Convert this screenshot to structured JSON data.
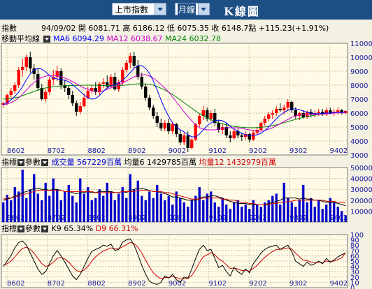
{
  "header": {
    "market_select": "上市指數",
    "period_select": "月線",
    "title": "K線圖"
  },
  "price_panel": {
    "label": "指數",
    "date": "94/09/02",
    "open_label": "開",
    "open": "6081.71",
    "high_label": "高",
    "high": "6186.12",
    "low_label": "低",
    "low": "6075.35",
    "close_label": "收",
    "close": "6148.7點",
    "change": "+115.23(+1.91%)",
    "ma_label": "移動平均線",
    "ma6": "MA6 6094.29",
    "ma12": "MA12 6038.67",
    "ma24": "MA24 6032.78"
  },
  "volume_panel": {
    "label": "指標",
    "param_label": "參數",
    "volume": "成交量 567229百萬",
    "avg6": "均量6 1429785百萬",
    "avg12": "均量12 1432979百萬"
  },
  "kd_panel": {
    "label": "指標",
    "param_label": "參數",
    "k9": "K9 65.34%",
    "d9": "D9 66.31%"
  },
  "colors": {
    "up": "#ff0000",
    "down": "#000000",
    "ma6": "#0000ff",
    "ma12": "#cc00cc",
    "ma24": "#008000",
    "volume": "#0000cc",
    "k": "#000000",
    "d": "#cc0000",
    "axis_text": "#1a1aa0",
    "plot_bg": "#fffbe6"
  },
  "chart_data": [
    {
      "type": "candlestick",
      "x_ticks": [
        "8602",
        "8702",
        "8802",
        "8902",
        "9002",
        "9102",
        "9202",
        "9302",
        "9402"
      ],
      "ylim": [
        3000,
        11000
      ],
      "y_ticks": [
        "3000",
        "4000",
        "5000",
        "6000",
        "7000",
        "8000",
        "9000",
        "10000",
        "11000"
      ],
      "candles": [
        [
          6600,
          6800,
          6400,
          6700
        ],
        [
          6700,
          7400,
          6600,
          7300
        ],
        [
          7300,
          7800,
          7100,
          7600
        ],
        [
          7600,
          8200,
          7400,
          8000
        ],
        [
          8000,
          9300,
          7800,
          9100
        ],
        [
          9100,
          9900,
          8600,
          9300
        ],
        [
          9300,
          10200,
          9000,
          10000
        ],
        [
          10000,
          10400,
          8900,
          9200
        ],
        [
          9200,
          9500,
          8400,
          8800
        ],
        [
          8800,
          9200,
          7600,
          7800
        ],
        [
          7800,
          8100,
          6900,
          7000
        ],
        [
          7000,
          7700,
          6800,
          7500
        ],
        [
          7500,
          8600,
          7300,
          8400
        ],
        [
          8400,
          9100,
          8000,
          8600
        ],
        [
          8600,
          9400,
          8300,
          9000
        ],
        [
          9000,
          9200,
          7700,
          8000
        ],
        [
          8000,
          8400,
          7500,
          7800
        ],
        [
          7800,
          8000,
          7000,
          7300
        ],
        [
          7300,
          7600,
          6500,
          6700
        ],
        [
          6700,
          6900,
          5800,
          6100
        ],
        [
          6100,
          6800,
          5900,
          6500
        ],
        [
          6500,
          7400,
          6400,
          7100
        ],
        [
          7100,
          7900,
          7000,
          7600
        ],
        [
          7600,
          8000,
          7400,
          7800
        ],
        [
          7800,
          8200,
          7300,
          7500
        ],
        [
          7500,
          8200,
          7300,
          8100
        ],
        [
          8100,
          8500,
          7800,
          8200
        ],
        [
          8200,
          8700,
          7700,
          7900
        ],
        [
          7900,
          8800,
          7800,
          8600
        ],
        [
          8600,
          8900,
          7600,
          7700
        ],
        [
          7700,
          8400,
          7500,
          8200
        ],
        [
          8200,
          9300,
          8000,
          9100
        ],
        [
          9100,
          9800,
          8900,
          9600
        ],
        [
          9600,
          10300,
          9200,
          10100
        ],
        [
          10100,
          10400,
          9200,
          9400
        ],
        [
          9400,
          9800,
          8400,
          8600
        ],
        [
          8600,
          8900,
          7700,
          7900
        ],
        [
          7900,
          8100,
          6900,
          7100
        ],
        [
          7100,
          7300,
          6200,
          6400
        ],
        [
          6400,
          6600,
          5600,
          5800
        ],
        [
          5800,
          6100,
          5000,
          5300
        ],
        [
          5300,
          5600,
          4700,
          4900
        ],
        [
          4900,
          5500,
          4700,
          5300
        ],
        [
          5300,
          5600,
          4500,
          4700
        ],
        [
          4700,
          5400,
          4500,
          5200
        ],
        [
          5200,
          5300,
          4300,
          4500
        ],
        [
          4500,
          4800,
          3700,
          3900
        ],
        [
          3900,
          4600,
          3700,
          4400
        ],
        [
          4400,
          4700,
          3200,
          3500
        ],
        [
          3500,
          4200,
          3400,
          4100
        ],
        [
          4100,
          5300,
          4000,
          5200
        ],
        [
          5200,
          6000,
          5000,
          5800
        ],
        [
          5800,
          6500,
          5500,
          6200
        ],
        [
          6200,
          6400,
          5400,
          5600
        ],
        [
          5600,
          6200,
          5400,
          6000
        ],
        [
          6000,
          6300,
          5100,
          5300
        ],
        [
          5300,
          5500,
          4600,
          4800
        ],
        [
          4800,
          5200,
          4500,
          5000
        ],
        [
          5000,
          5300,
          4200,
          4400
        ],
        [
          4400,
          4700,
          3900,
          4200
        ],
        [
          4200,
          4900,
          4100,
          4700
        ],
        [
          4700,
          4900,
          4200,
          4400
        ],
        [
          4400,
          4600,
          4000,
          4300
        ],
        [
          4300,
          4700,
          4100,
          4500
        ],
        [
          4500,
          4600,
          3900,
          4100
        ],
        [
          4100,
          4800,
          4000,
          4600
        ],
        [
          4600,
          5000,
          4400,
          4800
        ],
        [
          4800,
          5400,
          4700,
          5300
        ],
        [
          5300,
          5800,
          5100,
          5600
        ],
        [
          5600,
          6100,
          5400,
          5900
        ],
        [
          5900,
          6200,
          5600,
          6000
        ],
        [
          6000,
          6500,
          5800,
          6300
        ],
        [
          6300,
          6700,
          6100,
          6200
        ],
        [
          6200,
          6600,
          5900,
          6400
        ],
        [
          6400,
          7000,
          6200,
          6800
        ],
        [
          6800,
          6900,
          6000,
          6200
        ],
        [
          6200,
          6400,
          5600,
          5800
        ],
        [
          5800,
          6100,
          5500,
          6000
        ],
        [
          6000,
          6200,
          5600,
          5700
        ],
        [
          5700,
          6200,
          5600,
          6100
        ],
        [
          6100,
          6300,
          5700,
          5900
        ],
        [
          5900,
          6200,
          5700,
          6000
        ],
        [
          6000,
          6300,
          5800,
          6100
        ],
        [
          6100,
          6300,
          5800,
          5900
        ],
        [
          5900,
          6400,
          5800,
          6200
        ],
        [
          6200,
          6400,
          5900,
          6000
        ],
        [
          6000,
          6300,
          5800,
          6100
        ],
        [
          6100,
          6400,
          5900,
          6200
        ],
        [
          6200,
          6300,
          5900,
          6000
        ],
        [
          6000,
          6200,
          5900,
          6150
        ]
      ],
      "ma6": [
        6600,
        6750,
        6950,
        7200,
        7500,
        7900,
        8400,
        8800,
        9100,
        9200,
        9150,
        8950,
        8700,
        8500,
        8450,
        8400,
        8350,
        8250,
        8050,
        7800,
        7550,
        7300,
        7100,
        7000,
        7050,
        7250,
        7550,
        7800,
        7950,
        8050,
        8150,
        8350,
        8600,
        8900,
        9200,
        9400,
        9400,
        9200,
        8850,
        8300,
        7650,
        6950,
        6300,
        5750,
        5300,
        5000,
        4800,
        4650,
        4450,
        4300,
        4300,
        4500,
        4800,
        5100,
        5300,
        5450,
        5500,
        5450,
        5300,
        5050,
        4850,
        4700,
        4550,
        4450,
        4400,
        4400,
        4450,
        4550,
        4750,
        5000,
        5300,
        5600,
        5850,
        6050,
        6200,
        6300,
        6300,
        6250,
        6150,
        6050,
        6000,
        5950,
        5950,
        6000,
        6000,
        6000,
        6050,
        6050,
        6050,
        6100
      ],
      "ma12": [
        6600,
        6650,
        6750,
        6900,
        7100,
        7350,
        7650,
        7950,
        8200,
        8400,
        8550,
        8650,
        8700,
        8700,
        8650,
        8600,
        8500,
        8400,
        8250,
        8100,
        7950,
        7800,
        7700,
        7600,
        7550,
        7550,
        7600,
        7700,
        7800,
        7900,
        8000,
        8150,
        8300,
        8450,
        8600,
        8700,
        8750,
        8750,
        8650,
        8500,
        8300,
        8050,
        7800,
        7500,
        7150,
        6800,
        6450,
        6100,
        5750,
        5450,
        5150,
        4950,
        4850,
        4800,
        4800,
        4800,
        4850,
        4900,
        4950,
        4950,
        4950,
        4950,
        4900,
        4850,
        4800,
        4750,
        4700,
        4700,
        4750,
        4850,
        4950,
        5100,
        5250,
        5400,
        5550,
        5700,
        5800,
        5850,
        5900,
        5900,
        5900,
        5900,
        5900,
        5920,
        5950,
        5970,
        6000,
        6010,
        6020,
        6040
      ],
      "ma24": [
        7000,
        7020,
        7050,
        7100,
        7150,
        7250,
        7350,
        7450,
        7550,
        7650,
        7750,
        7800,
        7850,
        7900,
        7920,
        7940,
        7960,
        7970,
        7980,
        7980,
        7990,
        8000,
        8000,
        8000,
        8000,
        7990,
        7980,
        7970,
        7960,
        7960,
        7970,
        7990,
        8010,
        8040,
        8070,
        8100,
        8100,
        8090,
        8060,
        8000,
        7900,
        7780,
        7650,
        7500,
        7330,
        7150,
        6950,
        6750,
        6550,
        6350,
        6150,
        5970,
        5800,
        5650,
        5520,
        5410,
        5310,
        5230,
        5160,
        5100,
        5050,
        5010,
        4980,
        4960,
        4950,
        4950,
        4960,
        4980,
        5010,
        5050,
        5100,
        5160,
        5230,
        5310,
        5390,
        5470,
        5550,
        5620,
        5690,
        5750,
        5800,
        5850,
        5890,
        5930,
        5960,
        5990,
        6010,
        6020,
        6030,
        6033
      ]
    },
    {
      "type": "bar",
      "ylim": [
        0,
        50000
      ],
      "y_ticks": [
        "10000",
        "20000",
        "30000",
        "40000",
        "50000"
      ],
      "values": [
        18000,
        25000,
        20000,
        32000,
        28000,
        48000,
        22000,
        30000,
        44000,
        26000,
        20000,
        36000,
        24000,
        40000,
        30000,
        20000,
        28000,
        34000,
        24000,
        18000,
        40000,
        26000,
        32000,
        20000,
        22000,
        30000,
        24000,
        36000,
        28000,
        20000,
        26000,
        32000,
        22000,
        44000,
        30000,
        38000,
        24000,
        20000,
        28000,
        22000,
        34000,
        26000,
        20000,
        24000,
        16000,
        28000,
        22000,
        18000,
        14000,
        20000,
        24000,
        32000,
        20000,
        26000,
        28000,
        18000,
        14000,
        22000,
        16000,
        12000,
        18000,
        20000,
        14000,
        16000,
        12000,
        20000,
        16000,
        14000,
        18000,
        20000,
        24000,
        26000,
        16000,
        36000,
        22000,
        18000,
        14000,
        20000,
        34000,
        18000,
        22000,
        14000,
        20000,
        12000,
        16000,
        22000,
        18000,
        14000,
        10000,
        6000
      ],
      "avg6": [
        20000,
        21000,
        22000,
        24000,
        25000,
        27000,
        28000,
        29000,
        31000,
        31000,
        30000,
        30000,
        29000,
        30000,
        30000,
        29000,
        28000,
        28000,
        27000,
        26000,
        27000,
        27000,
        28000,
        27000,
        27000,
        28000,
        28000,
        28000,
        28000,
        27000,
        27000,
        28000,
        27000,
        29000,
        30000,
        31000,
        31000,
        30000,
        29000,
        28000,
        28000,
        27000,
        26000,
        25000,
        23000,
        23000,
        22000,
        21000,
        20000,
        20000,
        20000,
        22000,
        23000,
        23000,
        24000,
        24000,
        23000,
        22000,
        20000,
        19000,
        18000,
        17000,
        17000,
        17000,
        16000,
        16000,
        16000,
        16000,
        16000,
        17000,
        18000,
        19000,
        20000,
        22000,
        22000,
        22000,
        22000,
        21000,
        22000,
        21000,
        21000,
        20000,
        20000,
        19000,
        18000,
        18000,
        18000,
        17000,
        16000,
        15000
      ],
      "avg12": [
        21000,
        22000,
        22000,
        23000,
        24000,
        25000,
        26000,
        27000,
        28000,
        29000,
        29000,
        29000,
        29000,
        29000,
        29000,
        29000,
        28000,
        28000,
        28000,
        28000,
        28000,
        28000,
        28000,
        28000,
        27000,
        27000,
        27000,
        27000,
        27000,
        27000,
        27000,
        28000,
        28000,
        28000,
        28000,
        29000,
        29000,
        29000,
        29000,
        28000,
        28000,
        28000,
        27000,
        27000,
        26000,
        25000,
        24000,
        23000,
        22000,
        21000,
        21000,
        21000,
        22000,
        22000,
        22000,
        22000,
        22000,
        21000,
        21000,
        20000,
        20000,
        19000,
        18000,
        18000,
        17000,
        17000,
        16000,
        16000,
        16000,
        16000,
        17000,
        17000,
        18000,
        18000,
        19000,
        19000,
        20000,
        20000,
        20000,
        20000,
        20000,
        20000,
        20000,
        20000,
        19000,
        19000,
        19000,
        18000,
        18000,
        17500
      ]
    },
    {
      "type": "line",
      "ylim": [
        0,
        100
      ],
      "y_ticks": [
        "0",
        "10",
        "20",
        "30",
        "40",
        "50",
        "60",
        "70",
        "80",
        "90",
        "100"
      ],
      "k": [
        40,
        50,
        60,
        75,
        85,
        88,
        80,
        65,
        50,
        35,
        25,
        30,
        45,
        60,
        70,
        60,
        48,
        35,
        22,
        15,
        25,
        40,
        55,
        68,
        72,
        75,
        80,
        78,
        82,
        70,
        72,
        85,
        90,
        92,
        80,
        62,
        42,
        25,
        12,
        8,
        6,
        10,
        22,
        18,
        25,
        15,
        10,
        20,
        18,
        35,
        55,
        72,
        80,
        70,
        72,
        55,
        38,
        42,
        30,
        22,
        38,
        30,
        25,
        35,
        28,
        45,
        55,
        65,
        72,
        76,
        78,
        80,
        72,
        76,
        80,
        68,
        50,
        45,
        40,
        48,
        42,
        45,
        50,
        45,
        55,
        48,
        52,
        58,
        62,
        65
      ],
      "d": [
        42,
        45,
        50,
        58,
        67,
        74,
        76,
        72,
        65,
        55,
        45,
        40,
        42,
        48,
        55,
        57,
        54,
        48,
        40,
        32,
        30,
        33,
        40,
        50,
        58,
        64,
        69,
        72,
        75,
        73,
        73,
        77,
        81,
        85,
        83,
        76,
        65,
        52,
        39,
        28,
        21,
        17,
        19,
        19,
        21,
        19,
        16,
        17,
        17,
        23,
        34,
        47,
        58,
        62,
        66,
        62,
        54,
        50,
        43,
        36,
        37,
        35,
        32,
        33,
        31,
        36,
        42,
        50,
        57,
        63,
        68,
        72,
        72,
        73,
        75,
        73,
        65,
        58,
        52,
        51,
        48,
        47,
        48,
        47,
        50,
        49,
        50,
        53,
        56,
        66
      ]
    }
  ]
}
